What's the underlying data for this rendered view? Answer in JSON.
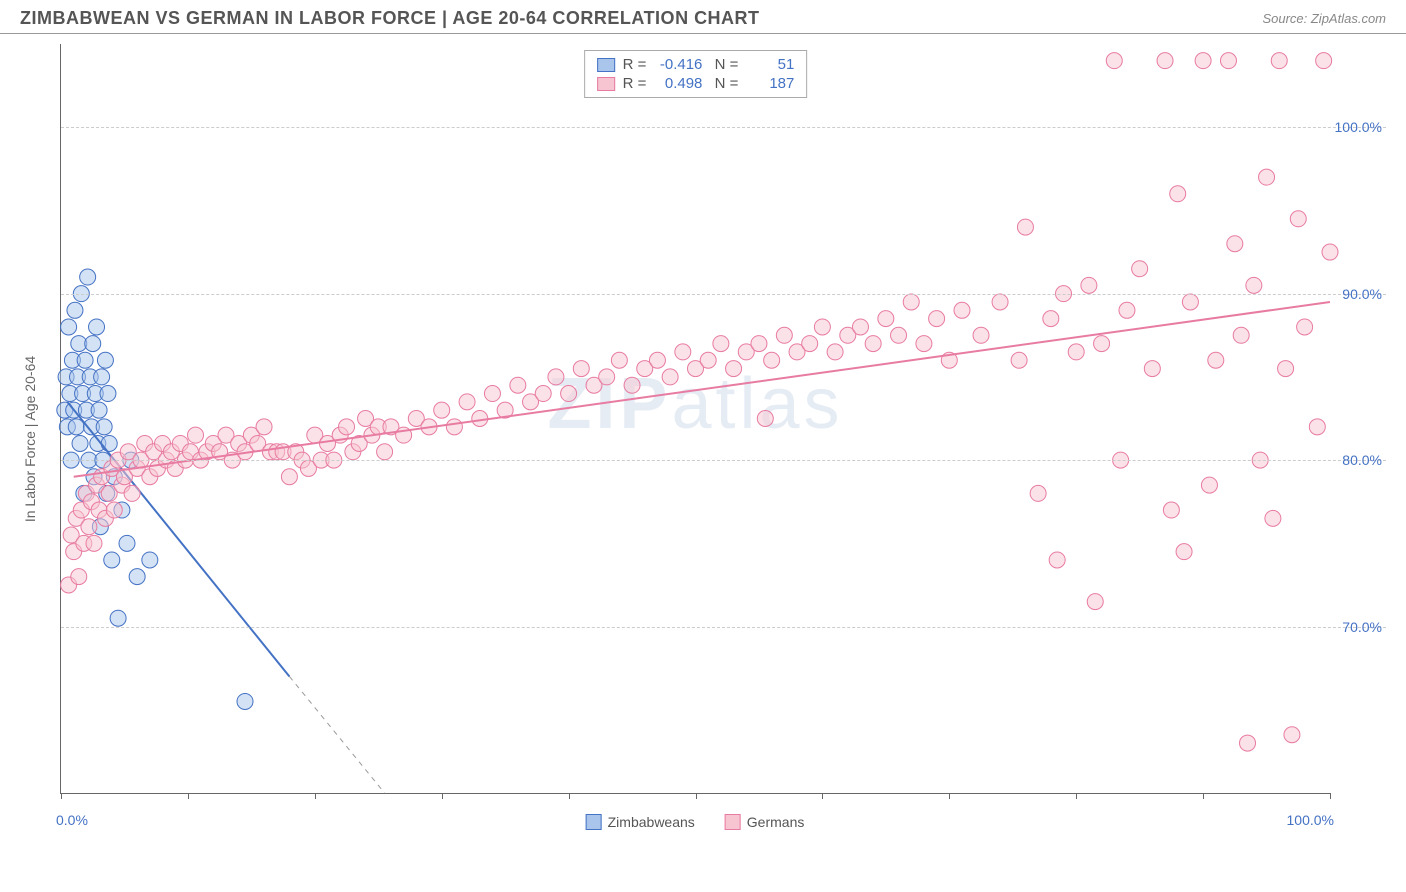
{
  "header": {
    "title": "ZIMBABWEAN VS GERMAN IN LABOR FORCE | AGE 20-64 CORRELATION CHART",
    "source": "Source: ZipAtlas.com"
  },
  "watermark": {
    "bold": "ZIP",
    "rest": "atlas"
  },
  "chart": {
    "type": "scatter",
    "y_axis_title": "In Labor Force | Age 20-64",
    "xlim": [
      0,
      100
    ],
    "ylim": [
      60,
      105
    ],
    "y_ticks": [
      70,
      80,
      90,
      100
    ],
    "y_tick_labels": [
      "70.0%",
      "80.0%",
      "90.0%",
      "100.0%"
    ],
    "x_ticks": [
      0,
      10,
      20,
      30,
      40,
      50,
      60,
      70,
      80,
      90,
      100
    ],
    "x_axis_label_left": "0.0%",
    "x_axis_label_right": "100.0%",
    "background_color": "#ffffff",
    "grid_color": "#cccccc",
    "axis_color": "#666666",
    "marker_radius": 8,
    "marker_opacity": 0.5,
    "line_width": 2,
    "series": [
      {
        "name": "Zimbabweans",
        "color_fill": "#a9c5ec",
        "color_stroke": "#4472c4",
        "r_value": "-0.416",
        "n_value": "51",
        "trend": {
          "x1": 0.5,
          "y1": 83.5,
          "x2": 18,
          "y2": 67
        },
        "trend_dashed_ext": {
          "x1": 18,
          "y1": 67,
          "x2": 25.5,
          "y2": 60
        },
        "points": [
          [
            0.3,
            83
          ],
          [
            0.4,
            85
          ],
          [
            0.5,
            82
          ],
          [
            0.6,
            88
          ],
          [
            0.7,
            84
          ],
          [
            0.8,
            80
          ],
          [
            0.9,
            86
          ],
          [
            1.0,
            83
          ],
          [
            1.1,
            89
          ],
          [
            1.2,
            82
          ],
          [
            1.3,
            85
          ],
          [
            1.4,
            87
          ],
          [
            1.5,
            81
          ],
          [
            1.6,
            90
          ],
          [
            1.7,
            84
          ],
          [
            1.8,
            78
          ],
          [
            1.9,
            86
          ],
          [
            2.0,
            83
          ],
          [
            2.1,
            91
          ],
          [
            2.2,
            80
          ],
          [
            2.3,
            85
          ],
          [
            2.4,
            82
          ],
          [
            2.5,
            87
          ],
          [
            2.6,
            79
          ],
          [
            2.7,
            84
          ],
          [
            2.8,
            88
          ],
          [
            2.9,
            81
          ],
          [
            3.0,
            83
          ],
          [
            3.1,
            76
          ],
          [
            3.2,
            85
          ],
          [
            3.3,
            80
          ],
          [
            3.4,
            82
          ],
          [
            3.5,
            86
          ],
          [
            3.6,
            78
          ],
          [
            3.7,
            84
          ],
          [
            3.8,
            81
          ],
          [
            4.0,
            74
          ],
          [
            4.2,
            79
          ],
          [
            4.5,
            70.5
          ],
          [
            4.8,
            77
          ],
          [
            5.2,
            75
          ],
          [
            5.5,
            80
          ],
          [
            6.0,
            73
          ],
          [
            7.0,
            74
          ],
          [
            14.5,
            65.5
          ]
        ]
      },
      {
        "name": "Germans",
        "color_fill": "#f7c5d2",
        "color_stroke": "#e87ba1",
        "r_value": "0.498",
        "n_value": "187",
        "trend": {
          "x1": 1,
          "y1": 79,
          "x2": 100,
          "y2": 89.5
        },
        "points": [
          [
            0.6,
            72.5
          ],
          [
            0.8,
            75.5
          ],
          [
            1.0,
            74.5
          ],
          [
            1.2,
            76.5
          ],
          [
            1.4,
            73
          ],
          [
            1.6,
            77
          ],
          [
            1.8,
            75
          ],
          [
            2.0,
            78
          ],
          [
            2.2,
            76
          ],
          [
            2.4,
            77.5
          ],
          [
            2.6,
            75
          ],
          [
            2.8,
            78.5
          ],
          [
            3.0,
            77
          ],
          [
            3.2,
            79
          ],
          [
            3.5,
            76.5
          ],
          [
            3.8,
            78
          ],
          [
            4.0,
            79.5
          ],
          [
            4.2,
            77
          ],
          [
            4.5,
            80
          ],
          [
            4.8,
            78.5
          ],
          [
            5.0,
            79
          ],
          [
            5.3,
            80.5
          ],
          [
            5.6,
            78
          ],
          [
            6.0,
            79.5
          ],
          [
            6.3,
            80
          ],
          [
            6.6,
            81
          ],
          [
            7.0,
            79
          ],
          [
            7.3,
            80.5
          ],
          [
            7.6,
            79.5
          ],
          [
            8.0,
            81
          ],
          [
            8.3,
            80
          ],
          [
            8.7,
            80.5
          ],
          [
            9.0,
            79.5
          ],
          [
            9.4,
            81
          ],
          [
            9.8,
            80
          ],
          [
            10.2,
            80.5
          ],
          [
            10.6,
            81.5
          ],
          [
            11.0,
            80
          ],
          [
            11.5,
            80.5
          ],
          [
            12.0,
            81
          ],
          [
            12.5,
            80.5
          ],
          [
            13.0,
            81.5
          ],
          [
            13.5,
            80
          ],
          [
            14.0,
            81
          ],
          [
            14.5,
            80.5
          ],
          [
            15.0,
            81.5
          ],
          [
            15.5,
            81
          ],
          [
            16.0,
            82
          ],
          [
            16.5,
            80.5
          ],
          [
            17.0,
            80.5
          ],
          [
            17.5,
            80.5
          ],
          [
            18.0,
            79
          ],
          [
            18.5,
            80.5
          ],
          [
            19.0,
            80
          ],
          [
            19.5,
            79.5
          ],
          [
            20.0,
            81.5
          ],
          [
            20.5,
            80
          ],
          [
            21.0,
            81
          ],
          [
            21.5,
            80
          ],
          [
            22.0,
            81.5
          ],
          [
            22.5,
            82
          ],
          [
            23.0,
            80.5
          ],
          [
            23.5,
            81
          ],
          [
            24.0,
            82.5
          ],
          [
            24.5,
            81.5
          ],
          [
            25.0,
            82
          ],
          [
            25.5,
            80.5
          ],
          [
            26.0,
            82
          ],
          [
            27.0,
            81.5
          ],
          [
            28.0,
            82.5
          ],
          [
            29.0,
            82
          ],
          [
            30.0,
            83
          ],
          [
            31.0,
            82
          ],
          [
            32.0,
            83.5
          ],
          [
            33.0,
            82.5
          ],
          [
            34.0,
            84
          ],
          [
            35.0,
            83
          ],
          [
            36.0,
            84.5
          ],
          [
            37.0,
            83.5
          ],
          [
            38.0,
            84
          ],
          [
            39.0,
            85
          ],
          [
            40.0,
            84
          ],
          [
            41.0,
            85.5
          ],
          [
            42.0,
            84.5
          ],
          [
            43.0,
            85
          ],
          [
            44.0,
            86
          ],
          [
            45.0,
            84.5
          ],
          [
            46.0,
            85.5
          ],
          [
            47.0,
            86
          ],
          [
            48.0,
            85
          ],
          [
            49.0,
            86.5
          ],
          [
            50.0,
            85.5
          ],
          [
            51.0,
            86
          ],
          [
            52.0,
            87
          ],
          [
            53.0,
            85.5
          ],
          [
            54.0,
            86.5
          ],
          [
            55.0,
            87
          ],
          [
            55.5,
            82.5
          ],
          [
            56.0,
            86
          ],
          [
            57.0,
            87.5
          ],
          [
            58.0,
            86.5
          ],
          [
            59.0,
            87
          ],
          [
            60.0,
            88
          ],
          [
            61.0,
            86.5
          ],
          [
            62.0,
            87.5
          ],
          [
            63.0,
            88
          ],
          [
            64.0,
            87
          ],
          [
            65.0,
            88.5
          ],
          [
            66.0,
            87.5
          ],
          [
            67.0,
            89.5
          ],
          [
            68.0,
            87
          ],
          [
            69.0,
            88.5
          ],
          [
            70.0,
            86
          ],
          [
            71.0,
            89
          ],
          [
            72.5,
            87.5
          ],
          [
            74.0,
            89.5
          ],
          [
            75.5,
            86
          ],
          [
            76,
            94
          ],
          [
            77.0,
            78
          ],
          [
            78.0,
            88.5
          ],
          [
            78.5,
            74
          ],
          [
            79.0,
            90
          ],
          [
            80.0,
            86.5
          ],
          [
            81.0,
            90.5
          ],
          [
            81.5,
            71.5
          ],
          [
            82.0,
            87
          ],
          [
            83.0,
            104
          ],
          [
            83.5,
            80
          ],
          [
            84.0,
            89
          ],
          [
            85.0,
            91.5
          ],
          [
            86.0,
            85.5
          ],
          [
            87.0,
            104
          ],
          [
            87.5,
            77
          ],
          [
            88.0,
            96
          ],
          [
            88.5,
            74.5
          ],
          [
            89.0,
            89.5
          ],
          [
            90.0,
            104
          ],
          [
            90.5,
            78.5
          ],
          [
            91.0,
            86
          ],
          [
            92.0,
            104
          ],
          [
            92.5,
            93
          ],
          [
            93.0,
            87.5
          ],
          [
            93.5,
            63
          ],
          [
            94.0,
            90.5
          ],
          [
            94.5,
            80
          ],
          [
            95.0,
            97
          ],
          [
            95.5,
            76.5
          ],
          [
            96.0,
            104
          ],
          [
            96.5,
            85.5
          ],
          [
            97.0,
            63.5
          ],
          [
            97.5,
            94.5
          ],
          [
            98.0,
            88
          ],
          [
            99.0,
            82
          ],
          [
            99.5,
            104
          ],
          [
            100.0,
            92.5
          ]
        ]
      }
    ],
    "bottom_legend": [
      {
        "label": "Zimbabweans",
        "fill": "#a9c5ec",
        "stroke": "#4472c4"
      },
      {
        "label": "Germans",
        "fill": "#f7c5d2",
        "stroke": "#e87ba1"
      }
    ]
  }
}
